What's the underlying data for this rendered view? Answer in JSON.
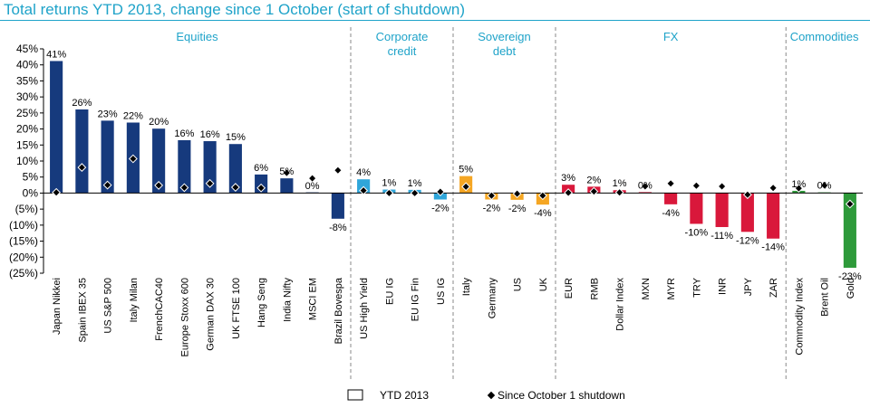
{
  "title": "Total returns YTD 2013, change since 1 October (start of shutdown)",
  "colors": {
    "title": "#1fa3c9",
    "Equities": "#163a7d",
    "Corporate credit": "#2fa6da",
    "Sovereign debt": "#f5a623",
    "FX": "#d9183b",
    "Commodities": "#2e9a3a",
    "marker": "#000000"
  },
  "chart_data": {
    "type": "bar",
    "ylim": [
      -25,
      45
    ],
    "ytick_step": 5,
    "ytick_labels": [
      "45%",
      "40%",
      "35%",
      "30%",
      "25%",
      "20%",
      "15%",
      "10%",
      "5%",
      "0%",
      "(5%)",
      "(10%)",
      "(15%)",
      "(20%)",
      "(25%)"
    ],
    "groups": [
      {
        "name": "Equities",
        "label_lines": [
          "Equities"
        ],
        "count": 12
      },
      {
        "name": "Corporate credit",
        "label_lines": [
          "Corporate",
          "credit"
        ],
        "count": 4
      },
      {
        "name": "Sovereign debt",
        "label_lines": [
          "Sovereign",
          "debt"
        ],
        "count": 4
      },
      {
        "name": "FX",
        "label_lines": [
          "FX"
        ],
        "count": 9
      },
      {
        "name": "Commodities",
        "label_lines": [
          "Commodities"
        ],
        "count": 3
      }
    ],
    "categories": [
      "Japan Nikkei",
      "Spain IBEX 35",
      "US S&P 500",
      "Italy Milan",
      "FrenchCAC40",
      "Europe Stoxx 600",
      "German DAX 30",
      "UK FTSE 100",
      "Hang Seng",
      "India Nifty",
      "MSCI EM",
      "Brazil Bovespa",
      "US High Yield",
      "EU IG",
      "EU IG Fin",
      "US IG",
      "Italy",
      "Germany",
      "US",
      "UK",
      "EUR",
      "RMB",
      "Dollar Index",
      "MXN",
      "MYR",
      "TRY",
      "INR",
      "JPY",
      "ZAR",
      "Commodity Index",
      "Brent Oil",
      "Gold"
    ],
    "series": [
      {
        "name": "YTD 2013",
        "values": [
          41.2,
          26.1,
          22.6,
          22.0,
          20.1,
          16.5,
          16.2,
          15.3,
          5.8,
          4.6,
          0.1,
          -8.0,
          4.3,
          1.1,
          1.0,
          -2.0,
          5.3,
          -2.0,
          -2.1,
          -3.6,
          2.6,
          2.0,
          0.9,
          0.3,
          -3.5,
          -9.6,
          -10.6,
          -12.1,
          -14.2,
          0.7,
          0.2,
          -23.3
        ]
      },
      {
        "name": "Since October 1 shutdown",
        "values": [
          0.2,
          8.0,
          2.5,
          10.7,
          2.4,
          1.7,
          3.0,
          1.8,
          1.6,
          6.3,
          4.6,
          7.1,
          0.8,
          0.0,
          0.0,
          0.4,
          2.0,
          -0.8,
          -0.2,
          -0.8,
          0.1,
          0.5,
          0.2,
          2.1,
          3.0,
          2.3,
          2.1,
          -0.5,
          1.6,
          1.5,
          2.4,
          -3.4
        ]
      }
    ],
    "data_labels": [
      "41%",
      "26%",
      "23%",
      "22%",
      "20%",
      "16%",
      "16%",
      "15%",
      "6%",
      "5%",
      "0%",
      "-8%",
      "4%",
      "1%",
      "1%",
      "-2%",
      "5%",
      "-2%",
      "-2%",
      "-4%",
      "3%",
      "2%",
      "1%",
      "0%",
      "-4%",
      "-10%",
      "-11%",
      "-12%",
      "-14%",
      "1%",
      "0%",
      "-23%"
    ],
    "legend": {
      "placement": "bottom",
      "items": [
        {
          "label": "YTD 2013",
          "kind": "box"
        },
        {
          "label": "Since October 1 shutdown",
          "kind": "diamond"
        }
      ]
    }
  }
}
